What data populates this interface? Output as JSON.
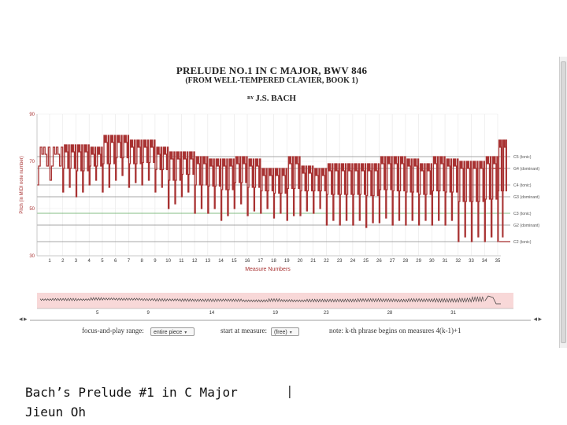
{
  "chart_data": {
    "type": "line",
    "title": "PRELUDE NO.1 IN C MAJOR, BWV 846",
    "subtitle": "(FROM WELL-TEMPERED CLAVIER, BOOK 1)",
    "byline_prefix": "BY",
    "composer": "J.S. BACH",
    "ylabel": "Pitch (in MIDI note number)",
    "xlabel": "Measure Numbers",
    "ylim": [
      30,
      90
    ],
    "yticks": [
      "90",
      "70",
      "50",
      "30"
    ],
    "x_tick_labels": [
      "1",
      "2",
      "3",
      "4",
      "5",
      "6",
      "7",
      "8",
      "9",
      "10",
      "11",
      "12",
      "13",
      "14",
      "15",
      "16",
      "17",
      "18",
      "19",
      "20",
      "21",
      "22",
      "23",
      "24",
      "25",
      "26",
      "27",
      "28",
      "29",
      "30",
      "31",
      "32",
      "33",
      "34",
      "35"
    ],
    "reference_lines": [
      {
        "label": "C5 (tonic)",
        "pitch": 72,
        "color": "#8a8a8a"
      },
      {
        "label": "G4 (dominant)",
        "pitch": 67,
        "color": "#8a8a8a"
      },
      {
        "label": "C4 (tonic)",
        "pitch": 60,
        "color": "#8a8a8a"
      },
      {
        "label": "G3 (dominant)",
        "pitch": 55,
        "color": "#8a8a8a"
      },
      {
        "label": "C3 (tonic)",
        "pitch": 48,
        "color": "#5aa85a"
      },
      {
        "label": "G2 (dominant)",
        "pitch": 43,
        "color": "#8a8a8a"
      },
      {
        "label": "C2 (tonic)",
        "pitch": 36,
        "color": "#8a8a8a"
      }
    ],
    "series": [
      {
        "name": "pitch",
        "color": "#a83232",
        "measures": [
          {
            "low": 60,
            "high": 76
          },
          {
            "low": 57,
            "high": 77
          },
          {
            "low": 55,
            "high": 77
          },
          {
            "low": 60,
            "high": 76
          },
          {
            "low": 57,
            "high": 81
          },
          {
            "low": 62,
            "high": 81
          },
          {
            "low": 59,
            "high": 79
          },
          {
            "low": 60,
            "high": 79
          },
          {
            "low": 57,
            "high": 76
          },
          {
            "low": 50,
            "high": 74
          },
          {
            "low": 55,
            "high": 74
          },
          {
            "low": 48,
            "high": 72
          },
          {
            "low": 48,
            "high": 71
          },
          {
            "low": 45,
            "high": 71
          },
          {
            "low": 50,
            "high": 72
          },
          {
            "low": 47,
            "high": 71
          },
          {
            "low": 48,
            "high": 67
          },
          {
            "low": 46,
            "high": 67
          },
          {
            "low": 45,
            "high": 72
          },
          {
            "low": 47,
            "high": 68
          },
          {
            "low": 48,
            "high": 67
          },
          {
            "low": 43,
            "high": 69
          },
          {
            "low": 43,
            "high": 69
          },
          {
            "low": 43,
            "high": 69
          },
          {
            "low": 42,
            "high": 69
          },
          {
            "low": 44,
            "high": 72
          },
          {
            "low": 43,
            "high": 72
          },
          {
            "low": 43,
            "high": 71
          },
          {
            "low": 43,
            "high": 69
          },
          {
            "low": 43,
            "high": 72
          },
          {
            "low": 43,
            "high": 71
          },
          {
            "low": 36,
            "high": 70
          },
          {
            "low": 36,
            "high": 70
          },
          {
            "low": 36,
            "high": 72
          },
          {
            "low": 36,
            "high": 79
          }
        ]
      }
    ],
    "overview_x_labels": [
      "5",
      "9",
      "14",
      "19",
      "23",
      "28",
      "31"
    ]
  },
  "controls": {
    "focus_label": "focus-and-play range:",
    "focus_value": "entire piece",
    "start_label": "start at measure:",
    "start_value": "(free)",
    "note_text": "note: k-th phrase begins on measures 4(k-1)+1"
  },
  "footer": {
    "title": "Bach’s Prelude #1 in C Major",
    "separator": "|",
    "author": "Jieun Oh"
  }
}
